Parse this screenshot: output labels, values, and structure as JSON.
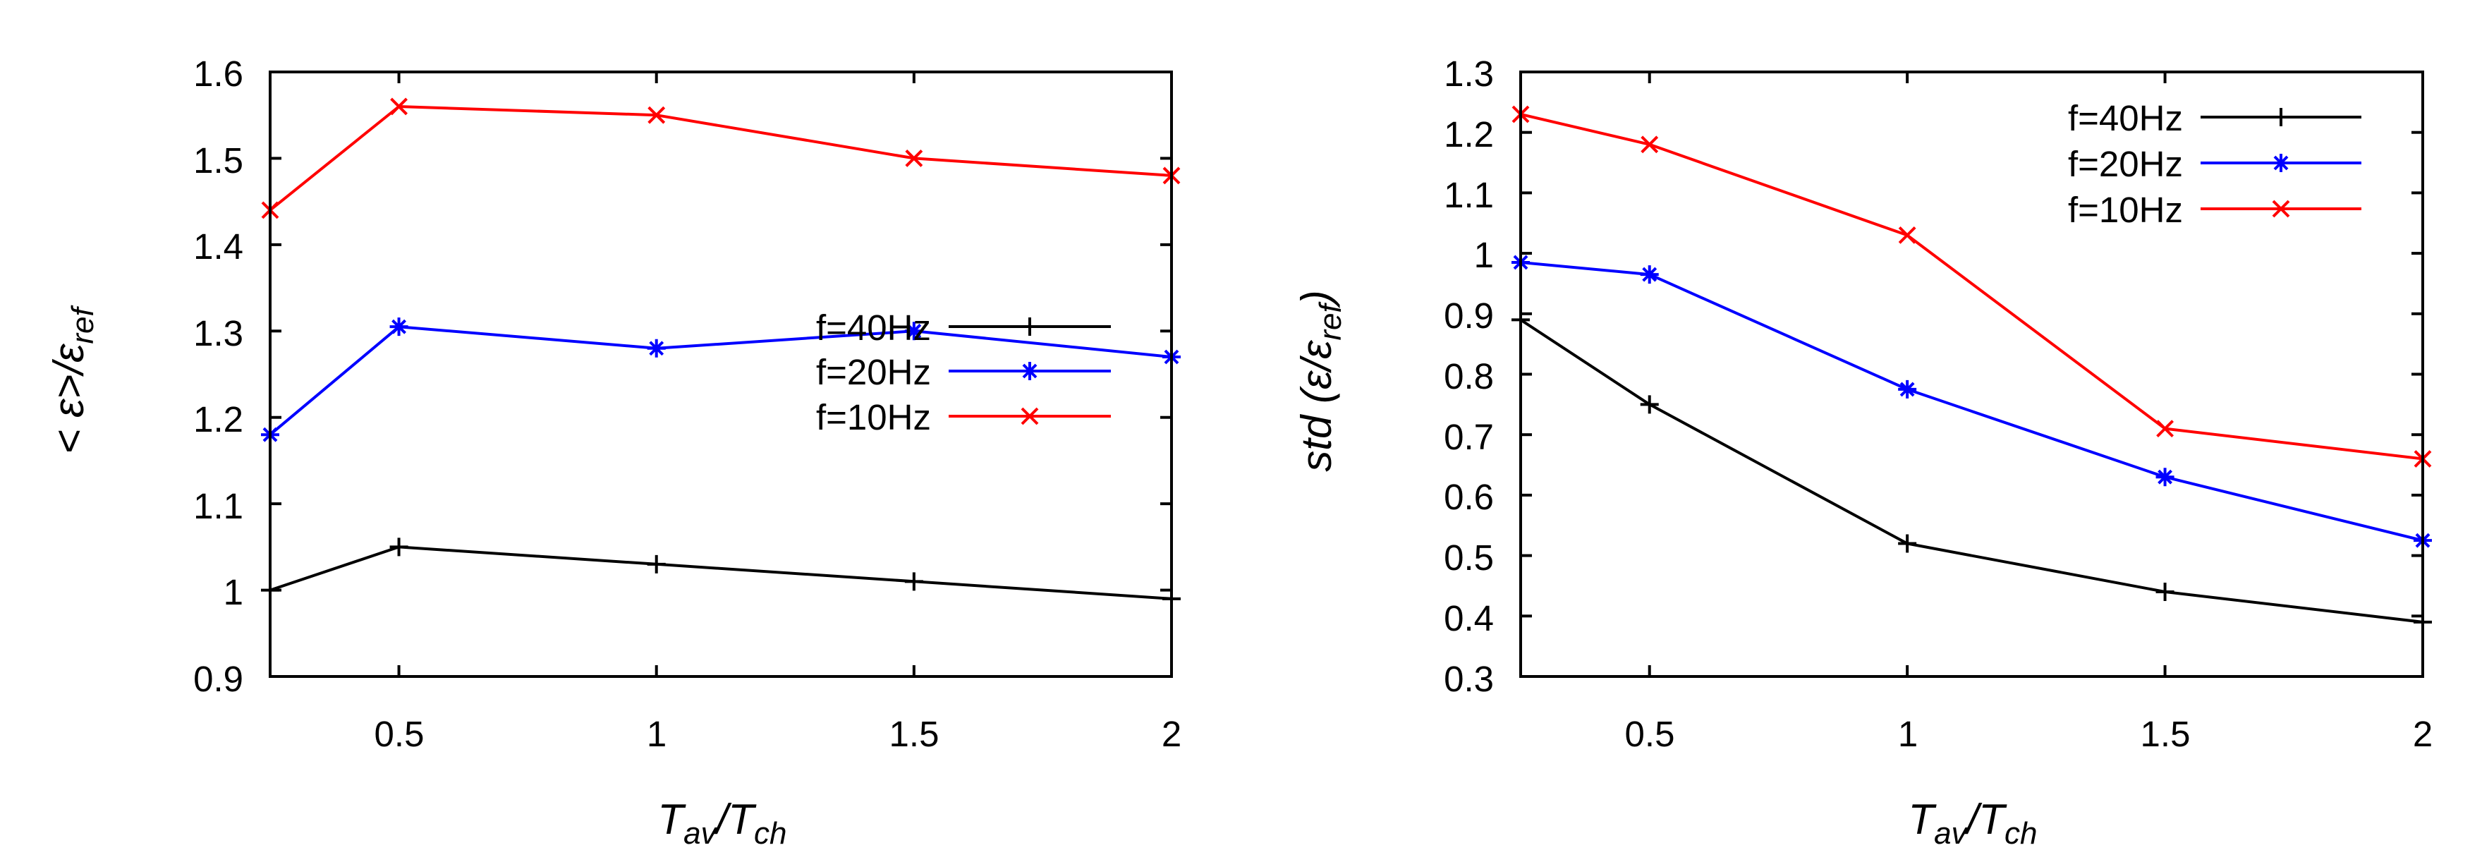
{
  "chart_data": [
    {
      "type": "line",
      "title": "",
      "xlabel": {
        "main": "T",
        "sub1": "av",
        "sep": "/T",
        "sub2": "ch"
      },
      "ylabel": {
        "main": "< ε>/ε",
        "sub": "ref"
      },
      "xlim": [
        0.25,
        2
      ],
      "ylim": [
        0.9,
        1.6
      ],
      "xticks": [
        0.5,
        1,
        1.5,
        2
      ],
      "xtick_labels": [
        "0.5",
        "1",
        "1.5",
        "2"
      ],
      "yticks": [
        0.9,
        1,
        1.1,
        1.2,
        1.3,
        1.4,
        1.5,
        1.6
      ],
      "ytick_labels": [
        "0.9",
        "1",
        "1.1",
        "1.2",
        "1.3",
        "1.4",
        "1.5",
        "1.6"
      ],
      "grid": false,
      "legend_position": "center-right",
      "series": [
        {
          "name": "f=40Hz",
          "color": "#000000",
          "marker": "plus",
          "x": [
            0.25,
            0.5,
            1,
            1.5,
            2
          ],
          "y": [
            1.0,
            1.05,
            1.03,
            1.01,
            0.99
          ]
        },
        {
          "name": "f=20Hz",
          "color": "#0000ff",
          "marker": "star",
          "x": [
            0.25,
            0.5,
            1,
            1.5,
            2
          ],
          "y": [
            1.18,
            1.305,
            1.28,
            1.3,
            1.27
          ]
        },
        {
          "name": "f=10Hz",
          "color": "#ff0000",
          "marker": "cross",
          "x": [
            0.25,
            0.5,
            1,
            1.5,
            2
          ],
          "y": [
            1.44,
            1.56,
            1.55,
            1.5,
            1.48
          ]
        }
      ]
    },
    {
      "type": "line",
      "title": "",
      "xlabel": {
        "main": "T",
        "sub1": "av",
        "sep": "/T",
        "sub2": "ch"
      },
      "ylabel": {
        "main": "std (ε/ε",
        "sub": "ref",
        "end": ")"
      },
      "xlim": [
        0.25,
        2
      ],
      "ylim": [
        0.3,
        1.3
      ],
      "xticks": [
        0.5,
        1,
        1.5,
        2
      ],
      "xtick_labels": [
        "0.5",
        "1",
        "1.5",
        "2"
      ],
      "yticks": [
        0.3,
        0.4,
        0.5,
        0.6,
        0.7,
        0.8,
        0.9,
        1.0,
        1.1,
        1.2,
        1.3
      ],
      "ytick_labels": [
        "0.3",
        "0.4",
        "0.5",
        "0.6",
        "0.7",
        "0.8",
        "0.9",
        "1",
        "1.1",
        "1.2",
        "1.3"
      ],
      "grid": false,
      "legend_position": "top-right",
      "series": [
        {
          "name": "f=40Hz",
          "color": "#000000",
          "marker": "plus",
          "x": [
            0.25,
            0.5,
            1,
            1.5,
            2
          ],
          "y": [
            0.89,
            0.75,
            0.52,
            0.44,
            0.39
          ]
        },
        {
          "name": "f=20Hz",
          "color": "#0000ff",
          "marker": "star",
          "x": [
            0.25,
            0.5,
            1,
            1.5,
            2
          ],
          "y": [
            0.985,
            0.965,
            0.775,
            0.63,
            0.525
          ]
        },
        {
          "name": "f=10Hz",
          "color": "#ff0000",
          "marker": "cross",
          "x": [
            0.25,
            0.5,
            1,
            1.5,
            2
          ],
          "y": [
            1.23,
            1.18,
            1.03,
            0.71,
            0.66
          ]
        }
      ]
    }
  ]
}
